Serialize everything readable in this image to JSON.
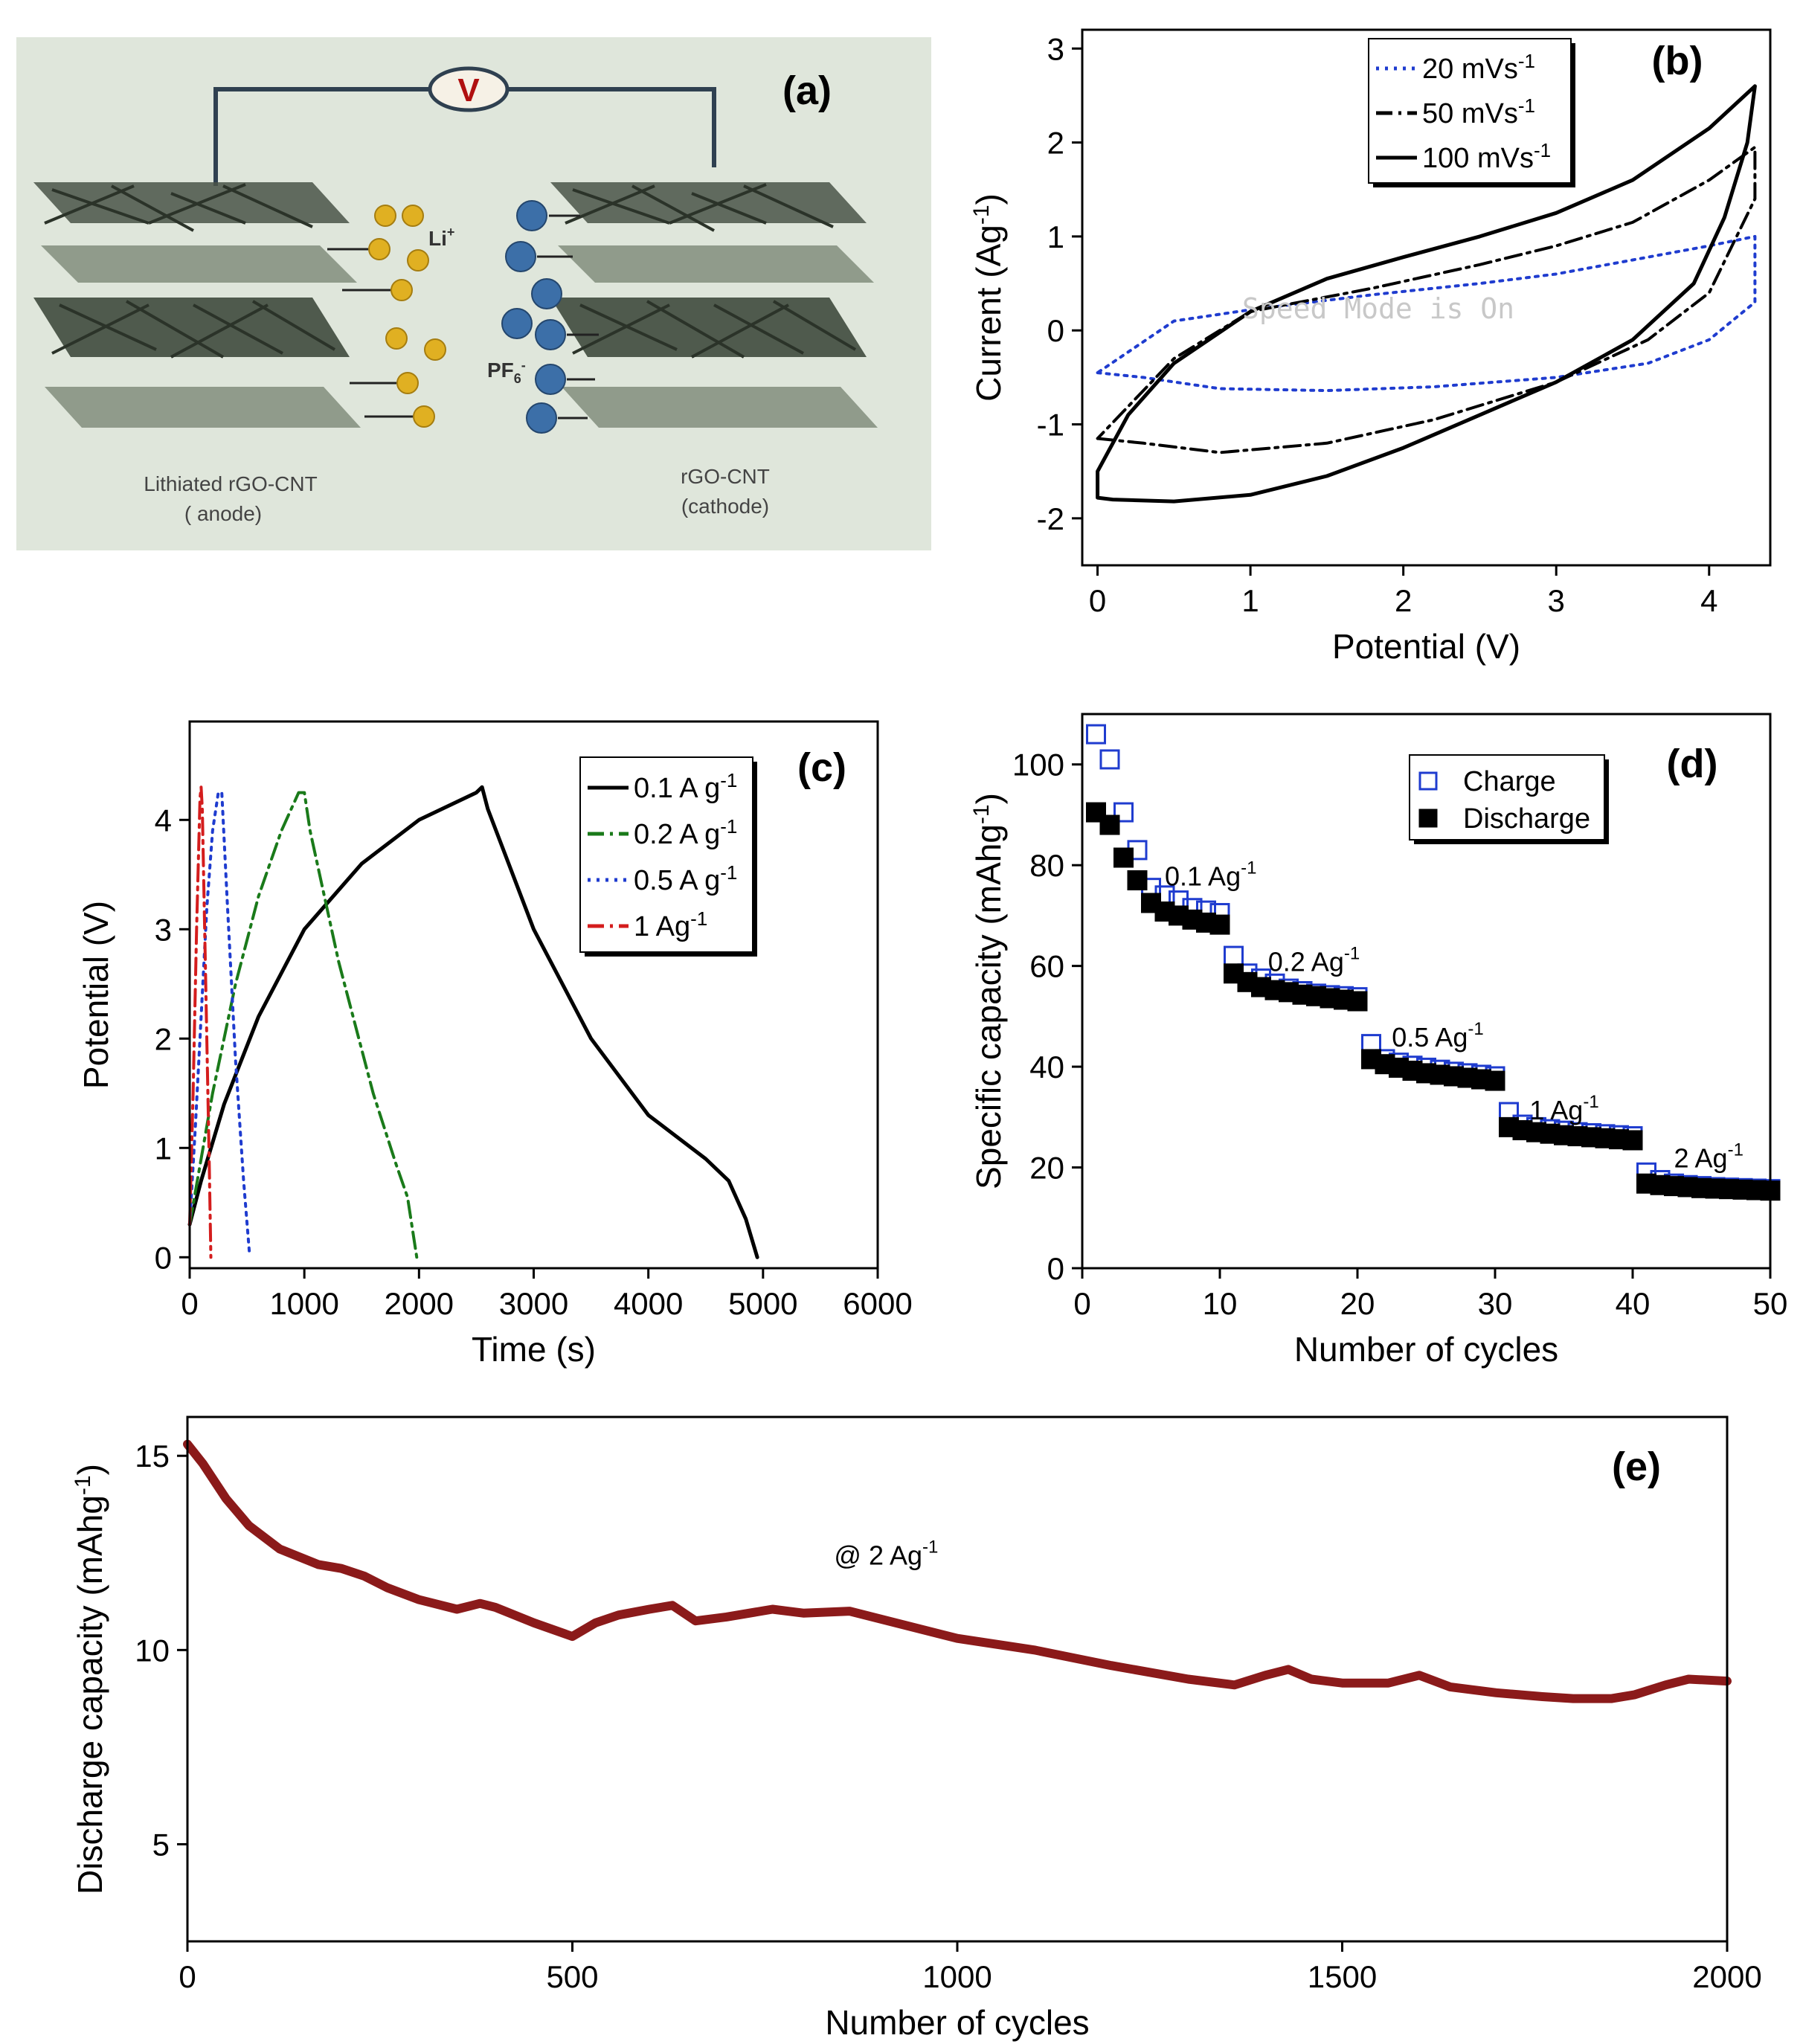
{
  "panel_a": {
    "label": "(a)",
    "voltmeter": "V",
    "li_ion": "Li",
    "li_sup": "+",
    "pf_ion": "PF",
    "pf_sub": "6",
    "pf_sup": "-",
    "anode_line1": "Lithiated rGO-CNT",
    "anode_line2": "( anode)",
    "cathode_line1": "rGO-CNT",
    "cathode_line2": "(cathode)",
    "colors": {
      "background": "#dfe6db",
      "li": "#e0b022",
      "pf": "#3c6fa8",
      "frame": "#2f4050"
    }
  },
  "watermark": "Speed Mode is On",
  "chart_data": [
    {
      "id": "b",
      "type": "line",
      "panel_label": "(b)",
      "xlabel": "Potential (V)",
      "ylabel": "Current (Ag",
      "ylabel_sup": "-1",
      "ylabel_end": ")",
      "xlim": [
        -0.1,
        4.4
      ],
      "ylim": [
        -2.5,
        3.2
      ],
      "xticks": [
        0,
        1,
        2,
        3,
        4
      ],
      "yticks": [
        -2,
        -1,
        0,
        1,
        2,
        3
      ],
      "legend_position": "top-right",
      "series": [
        {
          "name": "20 mVs",
          "name_sup": "-1",
          "color": "#1f3ccf",
          "dash": "dot",
          "x": [
            0,
            0.3,
            0.8,
            1.5,
            2.2,
            3.0,
            3.6,
            4.0,
            4.3,
            4.3,
            4.0,
            3.5,
            3.0,
            2.5,
            1.8,
            1.0,
            0.5,
            0
          ],
          "y": [
            -0.45,
            -0.5,
            -0.62,
            -0.64,
            -0.6,
            -0.5,
            -0.35,
            -0.1,
            0.3,
            1.0,
            0.9,
            0.75,
            0.6,
            0.5,
            0.38,
            0.22,
            0.1,
            -0.45
          ]
        },
        {
          "name": "50 mVs",
          "name_sup": "-1",
          "color": "#000000",
          "dash": "dashdot",
          "x": [
            0,
            0.3,
            0.8,
            1.5,
            2.2,
            3.0,
            3.6,
            4.0,
            4.3,
            4.3,
            4.0,
            3.5,
            3.0,
            2.5,
            1.8,
            1.0,
            0.5,
            0
          ],
          "y": [
            -1.15,
            -1.2,
            -1.3,
            -1.2,
            -0.95,
            -0.55,
            -0.1,
            0.4,
            1.4,
            1.95,
            1.6,
            1.15,
            0.9,
            0.7,
            0.45,
            0.2,
            -0.3,
            -1.15
          ]
        },
        {
          "name": "100 mVs",
          "name_sup": "-1",
          "color": "#000000",
          "dash": "solid",
          "x": [
            0,
            0.1,
            0.5,
            1.0,
            1.5,
            2.0,
            2.5,
            3.0,
            3.5,
            3.9,
            4.1,
            4.25,
            4.3,
            4.0,
            3.5,
            3.0,
            2.5,
            2.0,
            1.5,
            1.0,
            0.5,
            0.2,
            0.0,
            0
          ],
          "y": [
            -1.78,
            -1.8,
            -1.82,
            -1.75,
            -1.55,
            -1.25,
            -0.9,
            -0.55,
            -0.1,
            0.5,
            1.2,
            2.0,
            2.6,
            2.15,
            1.6,
            1.25,
            1.0,
            0.78,
            0.55,
            0.2,
            -0.35,
            -0.9,
            -1.5,
            -1.78
          ]
        }
      ]
    },
    {
      "id": "c",
      "type": "line",
      "panel_label": "(c)",
      "xlabel": "Time (s)",
      "ylabel": "Potential (V)",
      "xlim": [
        0,
        6000
      ],
      "ylim": [
        -0.1,
        4.9
      ],
      "xticks": [
        0,
        1000,
        2000,
        3000,
        4000,
        5000,
        6000
      ],
      "yticks": [
        0,
        1,
        2,
        3,
        4
      ],
      "legend_position": "top-right",
      "series": [
        {
          "name": "0.1 A g",
          "name_sup": "-1",
          "color": "#000000",
          "dash": "solid",
          "x": [
            0,
            100,
            300,
            600,
            1000,
            1500,
            2000,
            2500,
            2550,
            2600,
            3000,
            3500,
            4000,
            4500,
            4700,
            4850,
            4950
          ],
          "y": [
            0.3,
            0.7,
            1.4,
            2.2,
            3.0,
            3.6,
            4.0,
            4.25,
            4.3,
            4.1,
            3.0,
            2.0,
            1.3,
            0.9,
            0.7,
            0.35,
            0
          ]
        },
        {
          "name": "0.2 A g",
          "name_sup": "-1",
          "color": "#1a7a1a",
          "dash": "dashdot",
          "x": [
            0,
            100,
            200,
            400,
            600,
            800,
            950,
            1000,
            1050,
            1300,
            1600,
            1800,
            1900,
            1980
          ],
          "y": [
            0.3,
            0.9,
            1.5,
            2.5,
            3.3,
            3.9,
            4.25,
            4.25,
            3.9,
            2.7,
            1.5,
            0.85,
            0.55,
            0
          ]
        },
        {
          "name": "0.5 A g",
          "name_sup": "-1",
          "color": "#1f3ccf",
          "dash": "dot",
          "x": [
            0,
            50,
            100,
            150,
            200,
            250,
            280,
            330,
            400,
            470,
            520
          ],
          "y": [
            0.3,
            1.2,
            2.2,
            3.2,
            3.9,
            4.25,
            4.25,
            3.2,
            1.8,
            0.7,
            0.05
          ]
        },
        {
          "name": "1 Ag",
          "name_sup": "-1",
          "color": "#d41d1d",
          "dash": "dashdot",
          "x": [
            0,
            30,
            60,
            90,
            100,
            110,
            140,
            170,
            185
          ],
          "y": [
            0.3,
            1.5,
            3.0,
            4.2,
            4.3,
            4.1,
            2.5,
            0.9,
            0
          ]
        }
      ]
    },
    {
      "id": "d",
      "type": "scatter",
      "panel_label": "(d)",
      "xlabel": "Number of cycles",
      "ylabel": "Specific capacity (mAhg",
      "ylabel_sup": "-1",
      "ylabel_end": ")",
      "xlim": [
        0,
        50
      ],
      "ylim": [
        0,
        110
      ],
      "xticks": [
        0,
        10,
        20,
        30,
        40,
        50
      ],
      "yticks": [
        0,
        20,
        40,
        60,
        80,
        100
      ],
      "legend_position": "top-right",
      "series": [
        {
          "name": "Charge",
          "marker": "open-square",
          "color": "#1f3ccf",
          "x": [
            1,
            2,
            3,
            4,
            5,
            6,
            7,
            8,
            9,
            10,
            11,
            12,
            13,
            14,
            15,
            16,
            17,
            18,
            19,
            20,
            21,
            22,
            23,
            24,
            25,
            26,
            27,
            28,
            29,
            30,
            31,
            32,
            33,
            34,
            35,
            36,
            37,
            38,
            39,
            40,
            41,
            42,
            43,
            44,
            45,
            46,
            47,
            48,
            49,
            50
          ],
          "y": [
            106,
            101,
            90.5,
            83,
            75.5,
            74,
            73,
            71.5,
            71,
            70.5,
            62,
            58.5,
            57.5,
            56.5,
            55.5,
            55,
            54.5,
            54.2,
            54,
            53.8,
            44.5,
            41.5,
            40.8,
            40.2,
            39.8,
            39.4,
            39,
            38.7,
            38.4,
            38.1,
            31,
            28.5,
            28,
            27.6,
            27.3,
            27,
            26.8,
            26.6,
            26.4,
            26.2,
            19,
            17.5,
            16.8,
            16.5,
            16.3,
            16.1,
            16,
            15.9,
            15.8,
            15.7
          ]
        },
        {
          "name": "Discharge",
          "marker": "filled-square",
          "color": "#000000",
          "x": [
            1,
            2,
            3,
            4,
            5,
            6,
            7,
            8,
            9,
            10,
            11,
            12,
            13,
            14,
            15,
            16,
            17,
            18,
            19,
            20,
            21,
            22,
            23,
            24,
            25,
            26,
            27,
            28,
            29,
            30,
            31,
            32,
            33,
            34,
            35,
            36,
            37,
            38,
            39,
            40,
            41,
            42,
            43,
            44,
            45,
            46,
            47,
            48,
            49,
            50
          ],
          "y": [
            90.5,
            88,
            81.5,
            77,
            72.5,
            70.8,
            70,
            69.2,
            68.6,
            68.2,
            58.5,
            56.8,
            55.8,
            55.2,
            54.8,
            54.3,
            54,
            53.6,
            53.3,
            53,
            41.5,
            40.5,
            39.8,
            39.2,
            38.7,
            38.4,
            38.1,
            37.8,
            37.5,
            37.2,
            28,
            27.4,
            27,
            26.7,
            26.4,
            26.2,
            26,
            25.8,
            25.6,
            25.4,
            16.8,
            16.5,
            16.3,
            16.1,
            15.9,
            15.8,
            15.7,
            15.6,
            15.5,
            15.4
          ]
        }
      ],
      "annotations": [
        {
          "text": "0.1 Ag",
          "sup": "-1",
          "x": 6,
          "y": 76
        },
        {
          "text": "0.2 Ag",
          "sup": "-1",
          "x": 13.5,
          "y": 59
        },
        {
          "text": "0.5 Ag",
          "sup": "-1",
          "x": 22.5,
          "y": 44
        },
        {
          "text": "1 Ag",
          "sup": "-1",
          "x": 32.5,
          "y": 29.5
        },
        {
          "text": "2 Ag",
          "sup": "-1",
          "x": 43,
          "y": 20
        }
      ]
    },
    {
      "id": "e",
      "type": "line",
      "panel_label": "(e)",
      "xlabel": "Number of cycles",
      "ylabel": "Discharge capacity (mAhg",
      "ylabel_sup": "-1",
      "ylabel_end": ")",
      "xlim": [
        0,
        2000
      ],
      "ylim": [
        2.5,
        16
      ],
      "xticks": [
        0,
        500,
        1000,
        1500,
        2000
      ],
      "yticks": [
        5,
        10,
        15
      ],
      "series": [
        {
          "name": "",
          "color": "#8b1a1a",
          "x": [
            0,
            20,
            50,
            80,
            120,
            170,
            200,
            230,
            260,
            300,
            350,
            380,
            400,
            450,
            500,
            530,
            560,
            600,
            630,
            660,
            700,
            760,
            800,
            860,
            900,
            1000,
            1100,
            1200,
            1300,
            1360,
            1400,
            1430,
            1460,
            1500,
            1560,
            1600,
            1640,
            1700,
            1760,
            1800,
            1850,
            1880,
            1920,
            1950,
            2000
          ],
          "y": [
            15.3,
            14.8,
            13.9,
            13.2,
            12.6,
            12.2,
            12.1,
            11.9,
            11.6,
            11.3,
            11.05,
            11.2,
            11.1,
            10.7,
            10.35,
            10.7,
            10.9,
            11.05,
            11.15,
            10.75,
            10.85,
            11.05,
            10.95,
            11.0,
            10.8,
            10.3,
            10.0,
            9.6,
            9.25,
            9.1,
            9.35,
            9.5,
            9.25,
            9.15,
            9.15,
            9.35,
            9.05,
            8.9,
            8.8,
            8.75,
            8.75,
            8.85,
            9.1,
            9.25,
            9.2
          ]
        }
      ],
      "annotations": [
        {
          "text": "@ 2 Ag",
          "sup": "-1",
          "x": 840,
          "y": 12.2
        }
      ]
    }
  ]
}
